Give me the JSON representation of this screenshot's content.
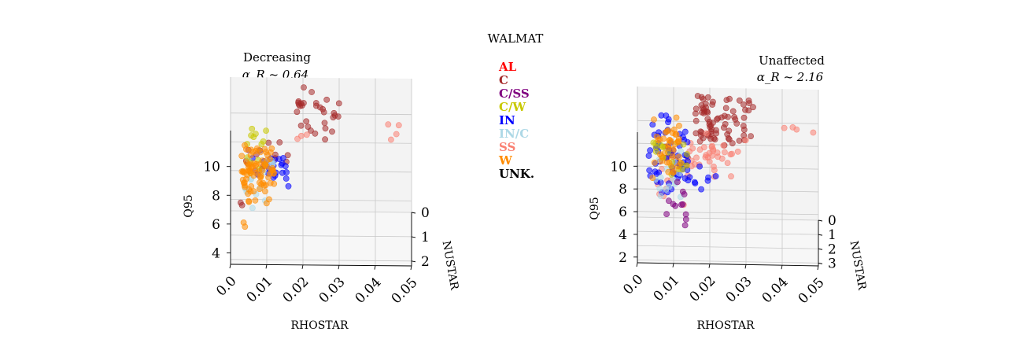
{
  "figure_title": "WALMAT",
  "legend": [
    {
      "label": "AL",
      "color": "#ff0000"
    },
    {
      "label": "C",
      "color": "#a52a2a"
    },
    {
      "label": "C/SS",
      "color": "#800080"
    },
    {
      "label": "C/W",
      "color": "#c8c800"
    },
    {
      "label": "IN",
      "color": "#0000ff"
    },
    {
      "label": "IN/C",
      "color": "#add8e6"
    },
    {
      "label": "SS",
      "color": "#fa8072"
    },
    {
      "label": "W",
      "color": "#ff8c00"
    },
    {
      "label": "UNK.",
      "color": "#000000"
    }
  ],
  "chart_data": [
    {
      "type": "scatter",
      "projection": "3d",
      "title": "Decreasing",
      "subtitle": "α_R ~ 0.64",
      "xlabel": "RHOSTAR",
      "ylabel": "NUSTAR",
      "zlabel": "Q95",
      "xticks": [
        "0.0",
        "0.01",
        "0.02",
        "0.03",
        "0.04",
        "0.05"
      ],
      "yticks": [
        "0",
        "1",
        "2"
      ],
      "zticks": [
        "4",
        "6",
        "8",
        "10"
      ],
      "xlim": [
        0,
        0.05
      ],
      "ylim": [
        0,
        2.2
      ],
      "zlim": [
        3.2,
        12.5
      ],
      "grid": true,
      "clusters": [
        {
          "name": "C",
          "color": "#a52a2a",
          "n": 30,
          "x": [
            0.018,
            0.03
          ],
          "y": [
            0.1,
            0.8
          ],
          "z": [
            9.0,
            12.2
          ]
        },
        {
          "name": "C",
          "color": "#a52a2a",
          "n": 12,
          "x": [
            0.004,
            0.016
          ],
          "y": [
            0.3,
            1.0
          ],
          "z": [
            7.4,
            8.8
          ]
        },
        {
          "name": "C",
          "color": "#a52a2a",
          "n": 3,
          "x": [
            0.002,
            0.01
          ],
          "y": [
            0.5,
            1.4
          ],
          "z": [
            5.5,
            12.0
          ]
        },
        {
          "name": "SS",
          "color": "#fa8072",
          "n": 4,
          "x": [
            0.042,
            0.048
          ],
          "y": [
            0.3,
            0.7
          ],
          "z": [
            8.8,
            10.2
          ]
        },
        {
          "name": "SS",
          "color": "#fa8072",
          "n": 3,
          "x": [
            0.018,
            0.022
          ],
          "y": [
            0.4,
            0.8
          ],
          "z": [
            9.2,
            9.8
          ]
        },
        {
          "name": "IN",
          "color": "#0000ff",
          "n": 22,
          "x": [
            0.006,
            0.016
          ],
          "y": [
            0.6,
            1.4
          ],
          "z": [
            7.2,
            8.8
          ]
        },
        {
          "name": "IN/C",
          "color": "#add8e6",
          "n": 14,
          "x": [
            0.004,
            0.012
          ],
          "y": [
            0.6,
            1.6
          ],
          "z": [
            6.0,
            8.2
          ]
        },
        {
          "name": "C/W",
          "color": "#c8c800",
          "n": 14,
          "x": [
            0.004,
            0.01
          ],
          "y": [
            0.5,
            1.2
          ],
          "z": [
            7.6,
            10.4
          ]
        },
        {
          "name": "W",
          "color": "#ff8c00",
          "n": 80,
          "x": [
            0.003,
            0.012
          ],
          "y": [
            0.6,
            1.6
          ],
          "z": [
            6.2,
            9.0
          ]
        },
        {
          "name": "W",
          "color": "#ff8c00",
          "n": 2,
          "x": [
            0.001,
            0.004
          ],
          "y": [
            1.4,
            2.0
          ],
          "z": [
            5.0,
            5.6
          ]
        }
      ]
    },
    {
      "type": "scatter",
      "projection": "3d",
      "title": "Unaffected",
      "subtitle": "α_R ~ 2.16",
      "xlabel": "RHOSTAR",
      "ylabel": "NUSTAR",
      "zlabel": "Q95",
      "xticks": [
        "0.0",
        "0.01",
        "0.02",
        "0.03",
        "0.04",
        "0.05"
      ],
      "yticks": [
        "0",
        "1",
        "2",
        "3"
      ],
      "zticks": [
        "2",
        "4",
        "6",
        "8",
        "10"
      ],
      "xlim": [
        0,
        0.05
      ],
      "ylim": [
        0,
        3.2
      ],
      "zlim": [
        1.5,
        13
      ],
      "grid": true,
      "clusters": [
        {
          "name": "C",
          "color": "#a52a2a",
          "n": 75,
          "x": [
            0.016,
            0.032
          ],
          "y": [
            0.1,
            1.0
          ],
          "z": [
            8.8,
            13.0
          ]
        },
        {
          "name": "C",
          "color": "#a52a2a",
          "n": 10,
          "x": [
            0.006,
            0.014
          ],
          "y": [
            0.5,
            1.5
          ],
          "z": [
            7.0,
            9.0
          ]
        },
        {
          "name": "SS",
          "color": "#fa8072",
          "n": 35,
          "x": [
            0.014,
            0.03
          ],
          "y": [
            0.4,
            1.6
          ],
          "z": [
            7.0,
            9.6
          ]
        },
        {
          "name": "SS",
          "color": "#fa8072",
          "n": 4,
          "x": [
            0.04,
            0.05
          ],
          "y": [
            0.2,
            0.8
          ],
          "z": [
            9.8,
            10.8
          ]
        },
        {
          "name": "SS",
          "color": "#fa8072",
          "n": 10,
          "x": [
            0.004,
            0.014
          ],
          "y": [
            0.8,
            2.0
          ],
          "z": [
            4.8,
            7.4
          ]
        },
        {
          "name": "IN",
          "color": "#0000ff",
          "n": 55,
          "x": [
            0.003,
            0.014
          ],
          "y": [
            0.3,
            2.2
          ],
          "z": [
            5.6,
            12.2
          ]
        },
        {
          "name": "IN",
          "color": "#0000ff",
          "n": 8,
          "x": [
            0.014,
            0.022
          ],
          "y": [
            0.8,
            1.8
          ],
          "z": [
            5.6,
            7.8
          ]
        },
        {
          "name": "IN/C",
          "color": "#add8e6",
          "n": 15,
          "x": [
            0.003,
            0.012
          ],
          "y": [
            0.6,
            2.0
          ],
          "z": [
            5.2,
            8.6
          ]
        },
        {
          "name": "C/SS",
          "color": "#800080",
          "n": 12,
          "x": [
            0.008,
            0.014
          ],
          "y": [
            1.2,
            2.4
          ],
          "z": [
            3.6,
            6.4
          ]
        },
        {
          "name": "C/W",
          "color": "#c8c800",
          "n": 20,
          "x": [
            0.004,
            0.014
          ],
          "y": [
            0.5,
            1.6
          ],
          "z": [
            6.4,
            9.4
          ]
        },
        {
          "name": "W",
          "color": "#ff8c00",
          "n": 40,
          "x": [
            0.004,
            0.012
          ],
          "y": [
            0.6,
            1.8
          ],
          "z": [
            6.6,
            11.4
          ]
        }
      ]
    }
  ]
}
